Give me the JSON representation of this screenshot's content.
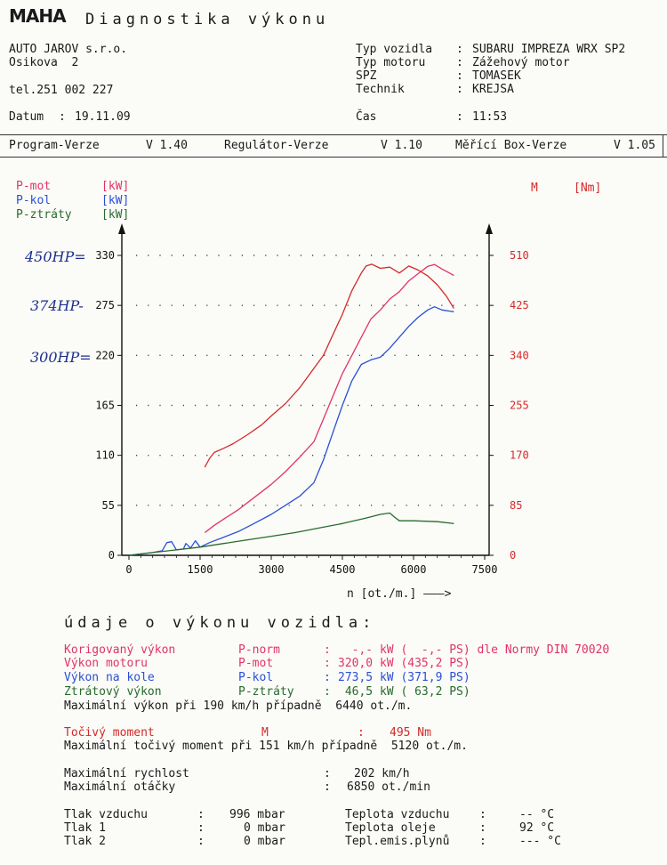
{
  "header": {
    "logo": "MAHA",
    "title": "Diagnostika výkonu"
  },
  "company": {
    "name": "AUTO JAROV s.r.o.",
    "street": "Osikova  2",
    "phone": "tel.251 002 227",
    "date_label": "Datum",
    "date": "19.11.09"
  },
  "vehicle": {
    "type_label": "Typ vozidla",
    "type": "SUBARU IMPREZA WRX SP2",
    "engine_label": "Typ motoru",
    "engine": "Zážehový motor",
    "spz_label": "SPZ",
    "spz": "TOMASEK",
    "tech_label": "Technik",
    "tech": "KREJSA",
    "time_label": "Čas",
    "time": "11:53"
  },
  "versions": {
    "program_label": "Program-Verze",
    "program": "V 1.40",
    "regulator_label": "Regulátor-Verze",
    "regulator": "V 1.10",
    "box_label": "Měřící Box-Verze",
    "box": "V 1.05"
  },
  "legend": {
    "pmot": "P-mot",
    "pmot_unit": "[kW]",
    "pkol": "P-kol",
    "pkol_unit": "[kW]",
    "pztraty": "P-ztráty",
    "pztraty_unit": "[kW]",
    "m": "M",
    "m_unit": "[Nm]"
  },
  "handwritten": {
    "note1": "450HP=",
    "note2": "374HP-",
    "note3": "300HP="
  },
  "colors": {
    "torque": "#d42a2a",
    "pmot": "#e0336a",
    "pkol": "#2a4fd6",
    "pztraty": "#276b2b"
  },
  "chart_data": {
    "type": "line",
    "xlabel": "n [ot./m.] ———>",
    "x_ticks": [
      "0",
      "1500",
      "3000",
      "4500",
      "6000",
      "7500"
    ],
    "xlim": [
      0,
      7500
    ],
    "y_left_ticks": [
      "0",
      "55",
      "110",
      "165",
      "220",
      "275",
      "330"
    ],
    "ylim_left": [
      0,
      330
    ],
    "y_right_ticks": [
      "0",
      "85",
      "170",
      "255",
      "340",
      "425",
      "510"
    ],
    "ylim_right": [
      0,
      510
    ],
    "grid": "dotted",
    "series": [
      {
        "name": "M",
        "axis": "right",
        "x": [
          1600,
          1700,
          1800,
          2000,
          2200,
          2500,
          2800,
          3000,
          3300,
          3600,
          3900,
          4100,
          4300,
          4500,
          4700,
          4900,
          5000,
          5120,
          5300,
          5500,
          5700,
          5900,
          6100,
          6300,
          6500,
          6700,
          6850
        ],
        "y": [
          150,
          165,
          175,
          182,
          190,
          205,
          222,
          237,
          258,
          285,
          318,
          340,
          375,
          410,
          450,
          480,
          492,
          495,
          488,
          490,
          480,
          492,
          485,
          475,
          460,
          440,
          420
        ]
      },
      {
        "name": "P-mot",
        "axis": "left",
        "x": [
          1600,
          1800,
          2000,
          2300,
          2600,
          3000,
          3300,
          3600,
          3900,
          4100,
          4300,
          4500,
          4700,
          4900,
          5100,
          5300,
          5500,
          5700,
          5900,
          6100,
          6300,
          6440,
          6600,
          6850
        ],
        "y": [
          25,
          33,
          40,
          50,
          62,
          78,
          92,
          108,
          125,
          150,
          175,
          200,
          220,
          240,
          260,
          270,
          282,
          290,
          302,
          310,
          318,
          320,
          315,
          308
        ]
      },
      {
        "name": "P-kol",
        "axis": "left",
        "x": [
          0,
          500,
          700,
          800,
          900,
          1000,
          1150,
          1200,
          1300,
          1400,
          1500,
          1700,
          2000,
          2300,
          2600,
          3000,
          3300,
          3600,
          3900,
          4100,
          4300,
          4500,
          4700,
          4900,
          5100,
          5300,
          5500,
          5700,
          5900,
          6100,
          6300,
          6440,
          6600,
          6850
        ],
        "y": [
          0,
          3,
          5,
          14,
          15,
          6,
          7,
          13,
          8,
          16,
          9,
          14,
          20,
          26,
          34,
          45,
          55,
          65,
          80,
          105,
          135,
          165,
          192,
          210,
          215,
          218,
          228,
          240,
          252,
          262,
          270,
          273.5,
          270,
          268
        ]
      },
      {
        "name": "P-ztráty",
        "axis": "left",
        "x": [
          0,
          500,
          1000,
          1500,
          2000,
          2500,
          3000,
          3500,
          4000,
          4500,
          5000,
          5300,
          5500,
          5600,
          5700,
          6000,
          6500,
          6850
        ],
        "y": [
          0,
          3,
          6,
          9,
          13,
          17,
          21,
          25,
          30,
          35,
          41,
          45,
          46.5,
          42,
          38,
          38,
          37,
          35
        ]
      }
    ]
  },
  "results": {
    "heading": "údaje o výkonu vozidla:",
    "rows": [
      {
        "label": "Korigovaný výkon",
        "key": "P-norm",
        "sep": ":",
        "value": "  -,- kW (  -,- PS) dle Normy DIN 70020",
        "cls": "pink"
      },
      {
        "label": "Výkon motoru",
        "key": "P-mot",
        "sep": ":",
        "value": "320,0 kW (435,2 PS)",
        "cls": "pink"
      },
      {
        "label": "Výkon na kole",
        "key": "P-kol",
        "sep": ":",
        "value": "273,5 kW (371,9 PS)",
        "cls": "blue"
      },
      {
        "label": "Ztrátový výkon",
        "key": "P-ztráty",
        "sep": ":",
        "value": " 46,5 kW ( 63,2 PS)",
        "cls": "green"
      }
    ],
    "maxpower": "Maximální výkon při 190 km/h případně  6440 ot./m.",
    "torque_label": "Točivý moment",
    "torque_key": "M",
    "torque_sep": ":",
    "torque_value": "495 Nm",
    "maxtorque": "Maximální točivý moment při 151 km/h případně  5120 ot./m.",
    "maxspeed_label": "Maximální rychlost",
    "maxspeed_sep": ":",
    "maxspeed": "202 km/h",
    "maxrpm_label": "Maximální otáčky",
    "maxrpm_sep": ":",
    "maxrpm": "6850 ot./min"
  },
  "conditions": {
    "air_label": "Tlak vzduchu",
    "air_sep": ":",
    "air": "996 mbar",
    "p1_label": "Tlak 1",
    "p1_sep": ":",
    "p1": "0 mbar",
    "p2_label": "Tlak 2",
    "p2_sep": ":",
    "p2": "0 mbar",
    "tair_label": "Teplota vzduchu",
    "tair_sep": ":",
    "tair": "-- °C",
    "toil_label": "Teplota oleje",
    "toil_sep": ":",
    "toil": "92 °C",
    "temis_label": "Tepl.emis.plynů",
    "temis_sep": ":",
    "temis": "--- °C"
  }
}
